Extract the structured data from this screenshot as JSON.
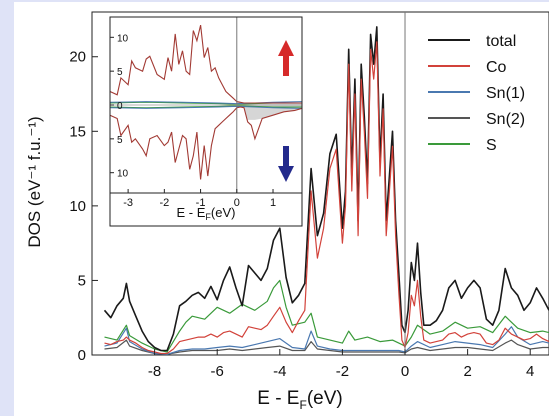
{
  "colors": {
    "background_frame": "#dfe3f7",
    "panel": "#ffffff",
    "total": "#1a1a1a",
    "Co": "#d2423a",
    "Sn1": "#4a78b0",
    "Sn2": "#555555",
    "S": "#3a9a3a",
    "arrow_up": "#d62a2a",
    "arrow_down": "#232a8c"
  },
  "chart_data": [
    {
      "type": "line",
      "xlabel_main": "E - E",
      "xlabel_sub": "F",
      "xlabel_unit": "(eV)",
      "ylabel": "DOS (eV⁻¹ f.u.⁻¹)",
      "xlim": [
        -10,
        4.6
      ],
      "ylim": [
        0,
        23
      ],
      "x_ticks": [
        -8,
        -6,
        -4,
        -2,
        0,
        2,
        4
      ],
      "x_tick_labels": [
        "-8",
        "-6",
        "-4",
        "-2",
        "0",
        "2",
        "4"
      ],
      "y_ticks": [
        0,
        5,
        10,
        15,
        20
      ],
      "y_tick_labels": [
        "0",
        "5",
        "10",
        "15",
        "20"
      ],
      "fermi_line_x": 0,
      "legend": {
        "placement": "top-right",
        "entries": [
          "total",
          "Co",
          "Sn(1)",
          "Sn(2)",
          "S"
        ]
      },
      "series": [
        {
          "name": "total",
          "x": [
            -9.6,
            -9.4,
            -9.2,
            -9.0,
            -8.9,
            -8.8,
            -8.6,
            -8.4,
            -8.2,
            -8.0,
            -7.8,
            -7.6,
            -7.4,
            -7.2,
            -7.0,
            -6.8,
            -6.6,
            -6.4,
            -6.2,
            -6.0,
            -5.8,
            -5.6,
            -5.4,
            -5.2,
            -5.0,
            -4.8,
            -4.6,
            -4.4,
            -4.2,
            -4.0,
            -3.8,
            -3.6,
            -3.4,
            -3.2,
            -3.0,
            -2.8,
            -2.6,
            -2.4,
            -2.2,
            -2.0,
            -1.9,
            -1.8,
            -1.7,
            -1.6,
            -1.5,
            -1.4,
            -1.3,
            -1.2,
            -1.1,
            -1.0,
            -0.9,
            -0.8,
            -0.7,
            -0.6,
            -0.5,
            -0.4,
            -0.3,
            -0.2,
            -0.1,
            0.0,
            0.1,
            0.2,
            0.3,
            0.4,
            0.5,
            0.6,
            0.8,
            1.0,
            1.2,
            1.4,
            1.6,
            1.8,
            2.0,
            2.2,
            2.4,
            2.6,
            2.8,
            3.0,
            3.2,
            3.4,
            3.6,
            3.8,
            4.0,
            4.2,
            4.4,
            4.6
          ],
          "values": [
            3.0,
            2.5,
            3.3,
            3.8,
            4.8,
            3.6,
            2.6,
            1.6,
            0.9,
            0.5,
            0.3,
            0.3,
            1.4,
            3.3,
            3.6,
            4.0,
            4.2,
            3.8,
            4.6,
            3.7,
            5.0,
            5.9,
            4.5,
            3.3,
            6.0,
            5.5,
            5.0,
            5.8,
            7.7,
            8.5,
            5.2,
            3.5,
            4.0,
            4.8,
            12.5,
            8.0,
            9.5,
            13.5,
            14.8,
            8.5,
            11.0,
            20.5,
            12.0,
            18.5,
            9.0,
            19.5,
            16.0,
            11.5,
            21.5,
            19.5,
            22.0,
            13.0,
            17.5,
            9.0,
            12.0,
            15.0,
            9.0,
            5.5,
            2.0,
            1.5,
            3.0,
            6.2,
            5.0,
            7.5,
            4.2,
            2.0,
            2.0,
            2.3,
            3.0,
            4.5,
            5.0,
            3.8,
            4.5,
            5.0,
            4.5,
            2.4,
            2.0,
            3.0,
            5.8,
            4.5,
            4.0,
            3.0,
            3.5,
            4.5,
            3.8,
            3.0
          ]
        },
        {
          "name": "Co",
          "x": [
            -9.6,
            -9.4,
            -9.2,
            -9.0,
            -8.9,
            -8.8,
            -8.6,
            -8.4,
            -8.2,
            -8.0,
            -7.8,
            -7.6,
            -7.4,
            -7.2,
            -7.0,
            -6.8,
            -6.6,
            -6.4,
            -6.2,
            -6.0,
            -5.8,
            -5.6,
            -5.4,
            -5.2,
            -5.0,
            -4.8,
            -4.6,
            -4.4,
            -4.2,
            -4.0,
            -3.8,
            -3.6,
            -3.4,
            -3.2,
            -3.0,
            -2.8,
            -2.6,
            -2.4,
            -2.2,
            -2.0,
            -1.9,
            -1.8,
            -1.7,
            -1.6,
            -1.5,
            -1.4,
            -1.3,
            -1.2,
            -1.1,
            -1.0,
            -0.9,
            -0.8,
            -0.7,
            -0.6,
            -0.5,
            -0.4,
            -0.3,
            -0.2,
            -0.1,
            0.0,
            0.1,
            0.2,
            0.3,
            0.4,
            0.5,
            0.6,
            0.8,
            1.0,
            1.2,
            1.4,
            1.6,
            1.8,
            2.0,
            2.2,
            2.4,
            2.6,
            2.8,
            3.0,
            3.2,
            3.4,
            3.6,
            3.8,
            4.0,
            4.2,
            4.4,
            4.6
          ],
          "values": [
            0.8,
            0.7,
            0.9,
            1.0,
            1.2,
            1.0,
            0.8,
            0.5,
            0.3,
            0.2,
            0.1,
            0.1,
            0.4,
            0.9,
            1.0,
            1.1,
            1.2,
            1.2,
            1.4,
            1.2,
            1.5,
            1.6,
            1.4,
            1.2,
            1.9,
            1.8,
            1.7,
            2.0,
            2.6,
            3.2,
            2.2,
            1.5,
            2.3,
            3.0,
            11.0,
            6.5,
            8.5,
            12.5,
            13.8,
            7.5,
            10.0,
            19.5,
            11.0,
            17.5,
            8.0,
            18.5,
            15.0,
            10.5,
            20.5,
            18.5,
            21.0,
            12.0,
            16.5,
            8.0,
            11.0,
            14.0,
            8.0,
            4.2,
            1.0,
            0.5,
            1.5,
            4.0,
            3.3,
            5.0,
            2.6,
            1.0,
            0.8,
            0.9,
            1.0,
            1.4,
            1.5,
            1.2,
            1.4,
            1.5,
            1.4,
            0.8,
            0.7,
            1.0,
            1.8,
            1.4,
            1.2,
            1.0,
            1.1,
            1.4,
            1.1,
            0.9
          ]
        },
        {
          "name": "Sn(1)",
          "x": [
            -9.6,
            -9.2,
            -8.9,
            -8.8,
            -8.4,
            -8.0,
            -7.6,
            -7.2,
            -6.8,
            -6.4,
            -6.0,
            -5.6,
            -5.2,
            -4.8,
            -4.4,
            -4.0,
            -3.6,
            -3.2,
            -3.0,
            -2.8,
            -2.4,
            -2.0,
            -1.6,
            -1.2,
            -0.8,
            -0.4,
            -0.2,
            0.0,
            0.2,
            0.4,
            0.8,
            1.2,
            1.6,
            2.0,
            2.4,
            2.8,
            3.2,
            3.4,
            3.6,
            4.0,
            4.4,
            4.6
          ],
          "values": [
            0.6,
            0.8,
            1.8,
            0.9,
            0.4,
            0.1,
            0.05,
            0.3,
            0.4,
            0.4,
            0.5,
            0.6,
            0.5,
            0.7,
            0.9,
            1.1,
            0.5,
            0.4,
            1.6,
            0.6,
            0.4,
            0.3,
            0.3,
            0.3,
            0.3,
            0.3,
            0.3,
            0.2,
            0.6,
            0.9,
            0.5,
            0.7,
            0.9,
            0.8,
            0.7,
            0.5,
            1.4,
            1.9,
            1.2,
            0.7,
            0.9,
            0.8
          ]
        },
        {
          "name": "Sn(2)",
          "x": [
            -9.6,
            -9.2,
            -8.9,
            -8.8,
            -8.4,
            -8.0,
            -7.6,
            -7.2,
            -6.8,
            -6.4,
            -6.0,
            -5.6,
            -5.2,
            -4.8,
            -4.4,
            -4.0,
            -3.6,
            -3.2,
            -3.0,
            -2.8,
            -2.4,
            -2.0,
            -1.6,
            -1.2,
            -0.8,
            -0.4,
            -0.2,
            0.0,
            0.2,
            0.4,
            0.8,
            1.2,
            1.6,
            2.0,
            2.4,
            2.8,
            3.2,
            3.4,
            3.6,
            4.0,
            4.4,
            4.6
          ],
          "values": [
            0.4,
            0.5,
            1.0,
            0.6,
            0.3,
            0.1,
            0.05,
            0.2,
            0.3,
            0.3,
            0.3,
            0.4,
            0.3,
            0.4,
            0.5,
            0.6,
            0.3,
            0.3,
            0.9,
            0.4,
            0.3,
            0.2,
            0.2,
            0.2,
            0.2,
            0.2,
            0.2,
            0.15,
            0.4,
            0.5,
            0.3,
            0.4,
            0.5,
            0.5,
            0.4,
            0.3,
            0.8,
            1.0,
            0.7,
            0.4,
            0.5,
            0.5
          ]
        },
        {
          "name": "S",
          "x": [
            -9.6,
            -9.2,
            -8.9,
            -8.8,
            -8.4,
            -8.0,
            -7.6,
            -7.2,
            -7.0,
            -6.8,
            -6.4,
            -6.0,
            -5.6,
            -5.2,
            -4.8,
            -4.4,
            -4.2,
            -4.0,
            -3.8,
            -3.6,
            -3.2,
            -3.0,
            -2.8,
            -2.4,
            -2.0,
            -1.8,
            -1.6,
            -1.2,
            -0.8,
            -0.4,
            -0.2,
            0.0,
            0.2,
            0.4,
            0.8,
            1.2,
            1.6,
            2.0,
            2.4,
            2.8,
            3.2,
            3.4,
            3.6,
            4.0,
            4.4,
            4.6
          ],
          "values": [
            1.2,
            1.0,
            2.0,
            1.3,
            0.8,
            0.4,
            0.2,
            1.6,
            2.2,
            2.6,
            2.4,
            3.2,
            2.8,
            3.4,
            3.0,
            3.6,
            4.5,
            5.0,
            3.2,
            2.0,
            2.2,
            2.8,
            1.2,
            1.0,
            0.8,
            1.6,
            1.0,
            1.2,
            0.9,
            1.0,
            0.8,
            0.6,
            1.2,
            2.0,
            1.4,
            1.6,
            2.2,
            1.8,
            1.9,
            1.5,
            2.6,
            2.2,
            1.8,
            1.5,
            1.6,
            1.5
          ]
        }
      ]
    },
    {
      "type": "line",
      "role": "inset",
      "xlabel_main": "E - E",
      "xlabel_sub": "F",
      "xlabel_unit": "(eV)",
      "xlim": [
        -3.5,
        1.8
      ],
      "ylim": [
        -13,
        13
      ],
      "x_ticks": [
        -3,
        -2,
        -1,
        0,
        1
      ],
      "x_tick_labels": [
        "-3",
        "-2",
        "-1",
        "0",
        "1"
      ],
      "y_ticks": [
        -10,
        -5,
        0,
        5,
        10
      ],
      "y_tick_labels": [
        "10",
        "5",
        "0",
        "5",
        "10"
      ],
      "fermi_line_x": 0,
      "spin_arrows": [
        "up",
        "down"
      ],
      "series": [
        {
          "name": "total",
          "x": [
            -3.5,
            -3.3,
            -3.2,
            -3.0,
            -2.9,
            -2.8,
            -2.6,
            -2.5,
            -2.4,
            -2.2,
            -2.0,
            -1.9,
            -1.8,
            -1.7,
            -1.6,
            -1.5,
            -1.4,
            -1.3,
            -1.2,
            -1.1,
            -1.0,
            -0.9,
            -0.8,
            -0.7,
            -0.6,
            -0.5,
            -0.4,
            -0.3,
            -0.2,
            -0.1,
            0.0,
            0.1,
            0.2,
            0.3,
            0.4,
            0.5,
            0.7,
            1.0,
            1.3,
            1.6,
            1.8
          ],
          "up": [
            2.0,
            1.5,
            4.0,
            3.0,
            6.5,
            5.5,
            5.0,
            6.8,
            7.2,
            4.5,
            3.8,
            7.0,
            5.0,
            10.5,
            6.0,
            8.0,
            5.0,
            4.5,
            11.0,
            9.5,
            11.8,
            7.0,
            8.5,
            5.0,
            5.5,
            4.0,
            3.0,
            2.0,
            1.5,
            1.0,
            0.5,
            0.4,
            0.3,
            0.3,
            0.3,
            0.3,
            0.3,
            0.3,
            0.3,
            0.3,
            0.3
          ],
          "down": [
            -1.5,
            -2.0,
            -4.5,
            -3.0,
            -5.5,
            -5.0,
            -6.5,
            -7.5,
            -5.0,
            -4.5,
            -6.0,
            -5.5,
            -4.0,
            -8.5,
            -6.5,
            -4.5,
            -5.0,
            -9.5,
            -7.5,
            -4.0,
            -11.0,
            -6.0,
            -10.5,
            -6.0,
            -3.5,
            -3.0,
            -2.5,
            -2.0,
            -1.5,
            -1.0,
            -0.4,
            -0.3,
            -0.4,
            -2.5,
            -3.0,
            -5.0,
            -2.0,
            -1.5,
            -1.0,
            -0.8,
            -0.5
          ]
        },
        {
          "name": "Sn(1)",
          "x": [
            -3.5,
            -2.5,
            -1.5,
            -0.5,
            0.0,
            0.5,
            1.0,
            1.8
          ],
          "up": [
            0.4,
            0.5,
            0.4,
            0.3,
            0.2,
            0.3,
            0.4,
            0.5
          ],
          "down": [
            -0.4,
            -0.5,
            -0.4,
            -0.3,
            -0.2,
            -0.3,
            -0.4,
            -0.5
          ]
        },
        {
          "name": "S",
          "x": [
            -3.5,
            -2.5,
            -1.5,
            -0.5,
            0.0,
            0.5,
            1.0,
            1.8
          ],
          "up": [
            0.3,
            0.4,
            0.3,
            0.2,
            0.1,
            0.2,
            0.3,
            0.3
          ],
          "down": [
            -0.3,
            -0.4,
            -0.3,
            -0.2,
            -0.1,
            -0.2,
            -0.3,
            -0.3
          ]
        }
      ]
    }
  ]
}
